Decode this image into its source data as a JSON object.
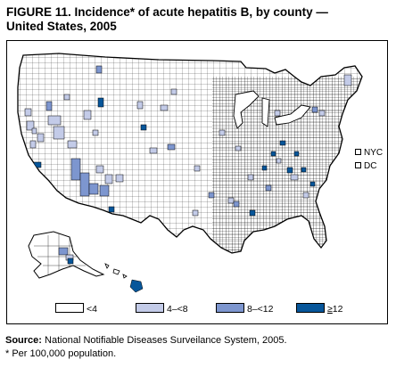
{
  "figure": {
    "title_line1": "FIGURE 11. Incidence* of acute hepatitis B, by county —",
    "title_line2": "United States, 2005"
  },
  "map": {
    "colors": {
      "lt4": "#ffffff",
      "4to8": "#c3cbe8",
      "8to12": "#7d96cf",
      "ge12": "#07569a",
      "border": "#000000"
    },
    "insets": [
      {
        "label": "NYC",
        "category": "lt4"
      },
      {
        "label": "DC",
        "category": "lt4"
      }
    ]
  },
  "legend": [
    {
      "label": "<4",
      "category": "lt4"
    },
    {
      "label": "4–<8",
      "category": "4to8"
    },
    {
      "label": "8–<12",
      "category": "8to12"
    },
    {
      "label": "12",
      "prefix": "≥",
      "category": "ge12"
    }
  ],
  "source": {
    "label": "Source:",
    "text": " National Notifiable Diseases Surveilance System, 2005."
  },
  "footnote": "* Per 100,000 population."
}
